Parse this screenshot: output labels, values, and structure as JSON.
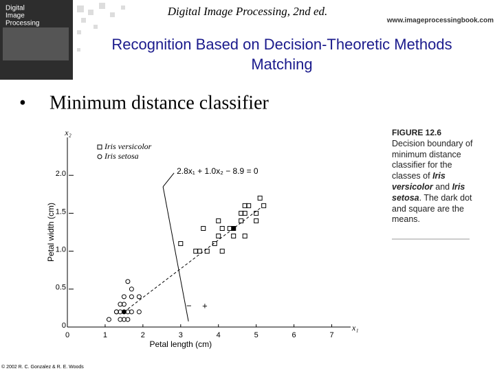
{
  "header": {
    "cover": [
      "Digital",
      "Image",
      "Processing"
    ],
    "book": "Digital Image Processing, 2nd ed.",
    "url": "www.imageprocessingbook.com"
  },
  "title": [
    "Recognition Based on Decision-Theoretic Methods",
    "Matching"
  ],
  "bullet": "Minimum distance classifier",
  "chart_data": {
    "type": "scatter",
    "x_var": "x₁",
    "y_var": "x₂",
    "xlabel": "Petal length (cm)",
    "ylabel": "Petal width (cm)",
    "xlim": [
      0,
      7.5
    ],
    "ylim": [
      0,
      2.5
    ],
    "xticks": [
      0,
      1,
      2,
      3,
      4,
      5,
      6,
      7
    ],
    "yticks": [
      0,
      0.5,
      {
        "value": 1,
        "label": "1.0"
      },
      1.5,
      {
        "value": 2,
        "label": "2.0"
      }
    ],
    "equation": "2.8x₁ + 1.0x₂ − 8.9 = 0",
    "side_signs": [
      "−",
      "+"
    ],
    "series": [
      {
        "name": "Iris versicolor",
        "marker": "square",
        "x": [
          5.1,
          4.7,
          4.8,
          5.2,
          3.0,
          3.4,
          3.5,
          3.7,
          3.9,
          4.1,
          4.0,
          4.1,
          4.3,
          4.4,
          4.7,
          4.0,
          4.6,
          5.0,
          4.6,
          4.7,
          5.0,
          3.6
        ],
        "y": [
          1.7,
          1.6,
          1.6,
          1.6,
          1.1,
          1.0,
          1.0,
          1.0,
          1.1,
          1.0,
          1.2,
          1.3,
          1.3,
          1.2,
          1.2,
          1.4,
          1.4,
          1.4,
          1.5,
          1.5,
          1.5,
          1.3
        ]
      },
      {
        "name": "Iris setosa",
        "marker": "circle",
        "x": [
          1.6,
          1.7,
          1.5,
          1.7,
          1.9,
          1.4,
          1.5,
          1.3,
          1.4,
          1.6,
          1.1,
          1.4,
          1.5,
          1.6,
          1.3,
          1.7,
          1.9
        ],
        "y": [
          0.6,
          0.5,
          0.4,
          0.4,
          0.4,
          0.3,
          0.3,
          0.2,
          0.2,
          0.2,
          0.1,
          0.1,
          0.1,
          0.1,
          0.2,
          0.2,
          0.2
        ]
      }
    ],
    "means": {
      "x": [
        4.4,
        1.5
      ],
      "y": [
        1.3,
        0.2
      ]
    }
  },
  "caption": {
    "label": "FIGURE 12.6",
    "segments": [
      {
        "text": "Decision boundary of minimum distance classifier for the classes of "
      },
      {
        "text": "Iris versicolor",
        "italic": true
      },
      {
        "text": " and "
      },
      {
        "text": "Iris setosa",
        "italic": true
      },
      {
        "text": ". The dark dot and square are the means."
      }
    ]
  },
  "footer": "© 2002 R. C. Gonzalez & R. E. Woods"
}
